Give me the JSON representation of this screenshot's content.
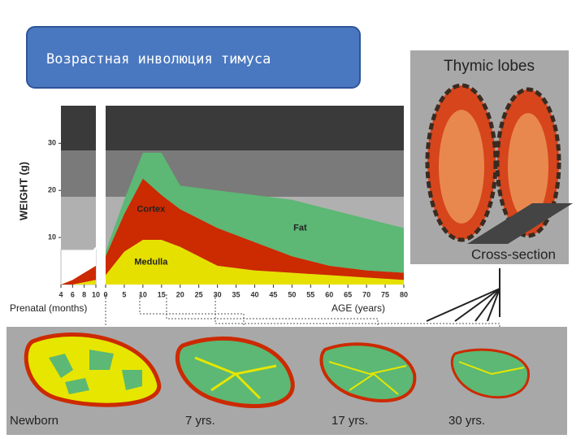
{
  "header": {
    "title": "Возрастная инволюция тимуса"
  },
  "chart_data": [
    {
      "type": "area",
      "y_label": "WEIGHT (g)",
      "x_label": "Prenatal (months)",
      "x": [
        4,
        6,
        8,
        10
      ],
      "xlim": [
        4,
        10
      ],
      "xticks": [
        4,
        6,
        8,
        10
      ],
      "ylim": [
        0,
        38
      ],
      "yticks": [
        10,
        20,
        30
      ],
      "series": [
        {
          "color": "#e6e000",
          "values": [
            0,
            0,
            0.5,
            1
          ]
        },
        {
          "color": "#cc2a00",
          "values": [
            0,
            1,
            2,
            3
          ]
        },
        {
          "color": "#ffffff",
          "values": [
            0,
            1,
            3,
            4
          ]
        }
      ]
    },
    {
      "type": "area",
      "x_label": "AGE (years)",
      "x": [
        0,
        5,
        10,
        15,
        20,
        30,
        40,
        50,
        60,
        70,
        80
      ],
      "xlim": [
        0,
        80
      ],
      "xticks": [
        0,
        5,
        10,
        15,
        20,
        25,
        30,
        35,
        40,
        45,
        50,
        55,
        60,
        65,
        70,
        75,
        80
      ],
      "ylim": [
        0,
        38
      ],
      "series": [
        {
          "name": "Medulla",
          "color": "#e6e000",
          "values": [
            2,
            7,
            9.5,
            9.5,
            8,
            4,
            3,
            2.5,
            2,
            1.5,
            1
          ]
        },
        {
          "name": "Cortex",
          "color": "#cc2a00",
          "values": [
            4,
            8,
            13,
            9.5,
            8,
            8,
            6,
            3.5,
            2,
            1.5,
            1.5
          ]
        },
        {
          "name": "Fat",
          "color": "#5cb874",
          "values": [
            1,
            3,
            5.5,
            9,
            5,
            8,
            10,
            12,
            12,
            11,
            9.5
          ]
        }
      ]
    }
  ],
  "lobes": {
    "title": "Thymic lobes",
    "caption": "Cross-section"
  },
  "stages": [
    "Newborn",
    "7 yrs.",
    "17 yrs.",
    "30 yrs."
  ]
}
